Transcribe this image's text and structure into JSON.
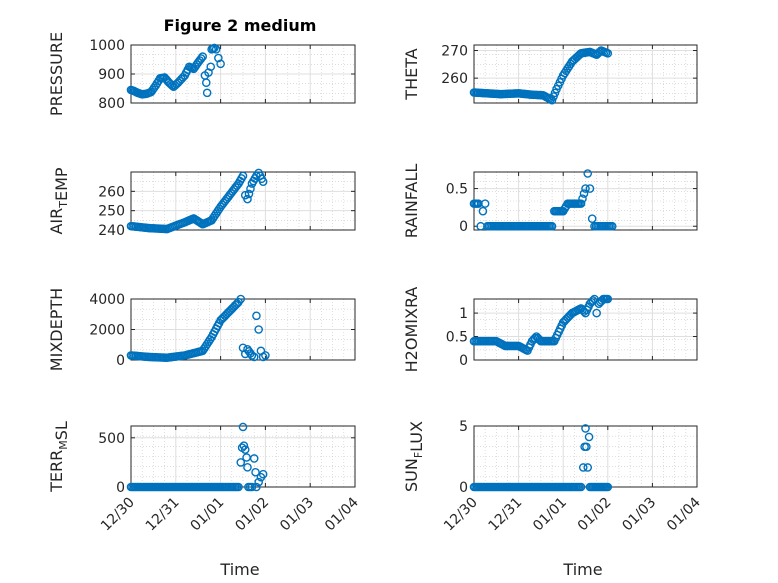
{
  "figure": {
    "title": "Figure 2 medium",
    "xlabel": "Time"
  },
  "colors": {
    "marker": "#0072BD",
    "axis": "#262626",
    "grid": "#dfdfdf",
    "minor_grid": "#c8c8c8"
  },
  "chart_data": [
    {
      "type": "scatter",
      "panel": "pressure",
      "ylabel_parts": [
        {
          "text": "PRESSURE"
        }
      ],
      "yticks": [
        800,
        900,
        1000
      ],
      "ylim": [
        800,
        1000
      ],
      "xlim": [
        "12/31",
        "01/04"
      ],
      "xticks": [],
      "x": [
        "12/31",
        "12/31",
        "12/31",
        "12/31",
        "12/31",
        "12/31",
        "01/01",
        "01/01",
        "01/01",
        "01/01",
        "01/01",
        "01/01",
        "01/01",
        "01/02",
        "01/02",
        "01/02",
        "01/02",
        "01/02",
        "01/03",
        "01/03",
        "01/03",
        "01/03",
        "01/03",
        "01/03",
        "01/03",
        "01/03",
        "01/03"
      ],
      "points": [
        [
          0.0,
          845
        ],
        [
          0.06,
          842
        ],
        [
          0.15,
          835
        ],
        [
          0.25,
          830
        ],
        [
          0.35,
          832
        ],
        [
          0.45,
          838
        ],
        [
          0.55,
          860
        ],
        [
          0.65,
          885
        ],
        [
          0.75,
          888
        ],
        [
          0.85,
          870
        ],
        [
          0.95,
          856
        ],
        [
          1.05,
          870
        ],
        [
          1.2,
          895
        ],
        [
          1.3,
          925
        ],
        [
          1.4,
          918
        ],
        [
          1.5,
          940
        ],
        [
          1.6,
          960
        ],
        [
          1.65,
          895
        ],
        [
          1.68,
          870
        ],
        [
          1.7,
          835
        ],
        [
          1.73,
          905
        ],
        [
          1.78,
          925
        ],
        [
          1.8,
          985
        ],
        [
          1.86,
          990
        ],
        [
          1.9,
          985
        ],
        [
          1.95,
          955
        ],
        [
          2.0,
          935
        ]
      ],
      "grid": true,
      "minor_grid": true
    },
    {
      "type": "scatter",
      "panel": "theta",
      "ylabel_parts": [
        {
          "text": "THETA"
        }
      ],
      "yticks": [
        260,
        270
      ],
      "ylim": [
        251,
        272
      ],
      "xlim": [
        "12/30",
        "01/04"
      ],
      "xticks": [],
      "x": [],
      "points": [
        [
          0.0,
          254.8
        ],
        [
          0.3,
          254.5
        ],
        [
          0.6,
          254.2
        ],
        [
          1.0,
          254.5
        ],
        [
          1.3,
          254.0
        ],
        [
          1.55,
          253.8
        ],
        [
          1.75,
          252.0
        ],
        [
          1.85,
          256.0
        ],
        [
          2.0,
          261.0
        ],
        [
          2.2,
          266.0
        ],
        [
          2.4,
          269.0
        ],
        [
          2.6,
          269.5
        ],
        [
          2.75,
          268.5
        ],
        [
          2.85,
          270.0
        ],
        [
          3.0,
          269.0
        ]
      ],
      "grid": true,
      "minor_grid": true
    },
    {
      "type": "scatter",
      "panel": "air_temp",
      "ylabel_parts": [
        {
          "text": "AIR"
        },
        {
          "text": "T",
          "sub": true
        },
        {
          "text": "EMP"
        }
      ],
      "yticks": [
        240,
        250,
        260
      ],
      "ylim": [
        240,
        270
      ],
      "xlim": [
        "12/30",
        "01/04"
      ],
      "xticks": [],
      "x": [],
      "points": [
        [
          0.0,
          242
        ],
        [
          0.4,
          241
        ],
        [
          0.8,
          240.5
        ],
        [
          1.2,
          244
        ],
        [
          1.4,
          246
        ],
        [
          1.6,
          243
        ],
        [
          1.8,
          245
        ],
        [
          2.0,
          252
        ],
        [
          2.2,
          258
        ],
        [
          2.4,
          264
        ],
        [
          2.5,
          268
        ],
        [
          2.55,
          258
        ],
        [
          2.6,
          256
        ],
        [
          2.7,
          264
        ],
        [
          2.8,
          268
        ],
        [
          2.85,
          269.5
        ],
        [
          2.95,
          265
        ]
      ],
      "grid": true,
      "minor_grid": true
    },
    {
      "type": "scatter",
      "panel": "rainfall",
      "ylabel_parts": [
        {
          "text": "RAINFALL"
        }
      ],
      "yticks": [
        0,
        0.5
      ],
      "ylim": [
        -0.05,
        0.72
      ],
      "xlim": [
        "12/30",
        "01/04"
      ],
      "xticks": [],
      "x": [],
      "points": [
        [
          0.0,
          0.3
        ],
        [
          0.1,
          0.3
        ],
        [
          0.15,
          0.0
        ],
        [
          0.2,
          0.2
        ],
        [
          0.25,
          0.3
        ],
        [
          0.3,
          0.0
        ],
        [
          0.8,
          0.0
        ],
        [
          1.4,
          0.0
        ],
        [
          1.75,
          0.0
        ],
        [
          1.8,
          0.2
        ],
        [
          2.0,
          0.2
        ],
        [
          2.1,
          0.3
        ],
        [
          2.4,
          0.3
        ],
        [
          2.5,
          0.5
        ],
        [
          2.55,
          0.7
        ],
        [
          2.6,
          0.5
        ],
        [
          2.65,
          0.1
        ],
        [
          2.7,
          0.0
        ],
        [
          3.1,
          0.0
        ]
      ],
      "grid": true,
      "minor_grid": true
    },
    {
      "type": "scatter",
      "panel": "mixdepth",
      "ylabel_parts": [
        {
          "text": "MIXDEPTH"
        }
      ],
      "yticks": [
        0,
        2000,
        4000
      ],
      "ylim": [
        0,
        4000
      ],
      "xlim": [
        "12/30",
        "01/04"
      ],
      "xticks": [],
      "x": [],
      "points": [
        [
          0.0,
          300
        ],
        [
          0.4,
          200
        ],
        [
          0.8,
          150
        ],
        [
          1.2,
          300
        ],
        [
          1.6,
          600
        ],
        [
          1.8,
          1500
        ],
        [
          2.0,
          2600
        ],
        [
          2.2,
          3200
        ],
        [
          2.4,
          3800
        ],
        [
          2.45,
          4000
        ],
        [
          2.5,
          800
        ],
        [
          2.55,
          400
        ],
        [
          2.6,
          700
        ],
        [
          2.7,
          300
        ],
        [
          2.75,
          200
        ],
        [
          2.8,
          2900
        ],
        [
          2.85,
          2000
        ],
        [
          2.9,
          600
        ],
        [
          2.95,
          200
        ],
        [
          3.0,
          300
        ]
      ],
      "grid": true,
      "minor_grid": true
    },
    {
      "type": "scatter",
      "panel": "h2omixra",
      "ylabel_parts": [
        {
          "text": "H2OMIXRA"
        }
      ],
      "yticks": [
        0,
        0.5,
        1
      ],
      "ylim": [
        0,
        1.3
      ],
      "xlim": [
        "12/30",
        "01/04"
      ],
      "xticks": [],
      "x": [],
      "points": [
        [
          0.0,
          0.4
        ],
        [
          0.5,
          0.4
        ],
        [
          0.7,
          0.3
        ],
        [
          1.0,
          0.3
        ],
        [
          1.2,
          0.2
        ],
        [
          1.3,
          0.4
        ],
        [
          1.4,
          0.5
        ],
        [
          1.5,
          0.4
        ],
        [
          1.8,
          0.4
        ],
        [
          2.0,
          0.8
        ],
        [
          2.2,
          1.0
        ],
        [
          2.4,
          1.1
        ],
        [
          2.5,
          1.0
        ],
        [
          2.6,
          1.2
        ],
        [
          2.7,
          1.3
        ],
        [
          2.75,
          1.0
        ],
        [
          2.8,
          1.2
        ],
        [
          2.9,
          1.3
        ],
        [
          3.0,
          1.3
        ]
      ],
      "grid": true,
      "minor_grid": true
    },
    {
      "type": "scatter",
      "panel": "terr_msl",
      "ylabel_parts": [
        {
          "text": "TERR"
        },
        {
          "text": "M",
          "sub": true
        },
        {
          "text": "SL"
        }
      ],
      "yticks": [
        0,
        500
      ],
      "ylim": [
        0,
        620
      ],
      "xlim": [
        "12/30",
        "01/04"
      ],
      "xticks": [
        "12/30",
        "12/31",
        "01/01",
        "01/02",
        "01/03",
        "01/04"
      ],
      "x": [],
      "points": [
        [
          0.0,
          0
        ],
        [
          1.0,
          0
        ],
        [
          2.0,
          0
        ],
        [
          2.4,
          0
        ],
        [
          2.45,
          250
        ],
        [
          2.48,
          400
        ],
        [
          2.5,
          610
        ],
        [
          2.52,
          420
        ],
        [
          2.55,
          380
        ],
        [
          2.58,
          300
        ],
        [
          2.6,
          200
        ],
        [
          2.62,
          0
        ],
        [
          2.7,
          0
        ],
        [
          2.75,
          290
        ],
        [
          2.78,
          150
        ],
        [
          2.8,
          0
        ],
        [
          2.85,
          50
        ],
        [
          2.9,
          100
        ],
        [
          2.95,
          130
        ]
      ],
      "grid": true,
      "minor_grid": true
    },
    {
      "type": "scatter",
      "panel": "sun_flux",
      "ylabel_parts": [
        {
          "text": "SUN"
        },
        {
          "text": "F",
          "sub": true
        },
        {
          "text": "LUX"
        }
      ],
      "yticks": [
        0,
        5
      ],
      "ylim": [
        0,
        5
      ],
      "xlim": [
        "12/30",
        "01/04"
      ],
      "xticks": [
        "12/30",
        "12/31",
        "01/01",
        "01/02",
        "01/03",
        "01/04"
      ],
      "x": [],
      "points": [
        [
          0.0,
          0
        ],
        [
          1.0,
          0
        ],
        [
          2.0,
          0
        ],
        [
          2.4,
          0
        ],
        [
          2.45,
          1.6
        ],
        [
          2.48,
          3.3
        ],
        [
          2.5,
          4.8
        ],
        [
          2.52,
          3.3
        ],
        [
          2.55,
          1.6
        ],
        [
          2.58,
          4.1
        ],
        [
          2.6,
          0
        ],
        [
          2.7,
          0
        ],
        [
          2.8,
          0
        ],
        [
          3.0,
          0
        ]
      ],
      "grid": true,
      "minor_grid": true
    }
  ]
}
